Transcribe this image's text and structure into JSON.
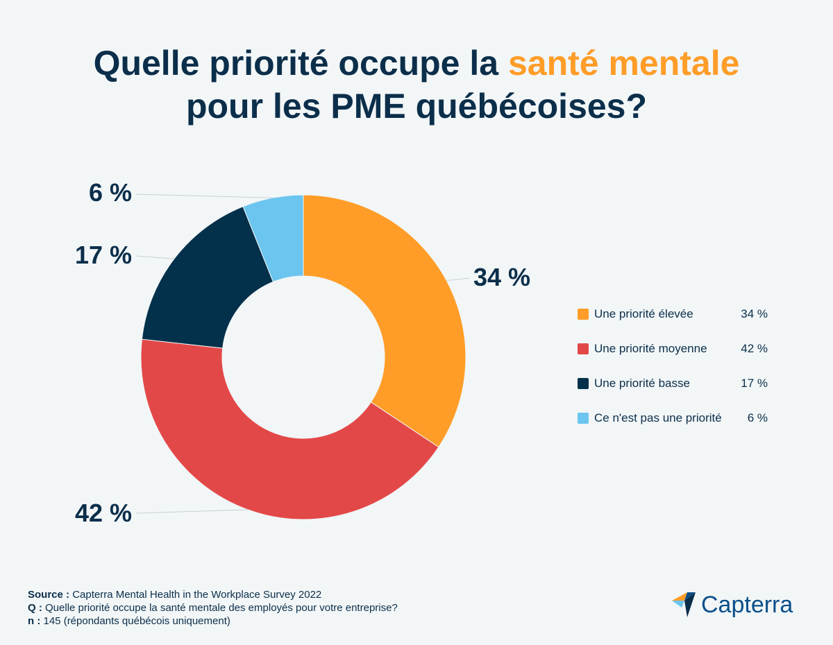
{
  "title": {
    "line1_prefix": "Quelle priorité occupe la ",
    "line1_accent": "santé mentale",
    "line2": "pour les PME québécoises?"
  },
  "chart_data": {
    "type": "pie",
    "donut": true,
    "title": "Quelle priorité occupe la santé mentale pour les PME québécoises?",
    "categories": [
      "Une priorité élevée",
      "Une priorité moyenne",
      "Une priorité basse",
      "Ce n'est pas une priorité"
    ],
    "values": [
      34,
      42,
      17,
      6
    ],
    "unit": "%",
    "labels": [
      "34 %",
      "42 %",
      "17 %",
      "6 %"
    ],
    "colors": [
      "#ff9d28",
      "#e34848",
      "#03304a",
      "#6bc5ef"
    ],
    "legend_position": "right"
  },
  "legend": [
    {
      "label": "Une priorité élevée",
      "value": "34 %"
    },
    {
      "label": "Une priorité moyenne",
      "value": "42 %"
    },
    {
      "label": "Une priorité basse",
      "value": "17 %"
    },
    {
      "label": "Ce n'est pas une priorité",
      "value": "6 %"
    }
  ],
  "footnote": {
    "source_label": "Source :",
    "source_text": "Capterra Mental Health in the Workplace Survey 2022",
    "q_label": "Q :",
    "q_text": "Quelle priorité occupe la santé mentale des employés pour votre entreprise?",
    "n_label": "n :",
    "n_text": "145 (répondants québécois uniquement)"
  },
  "logo": {
    "text": "Capterra"
  }
}
